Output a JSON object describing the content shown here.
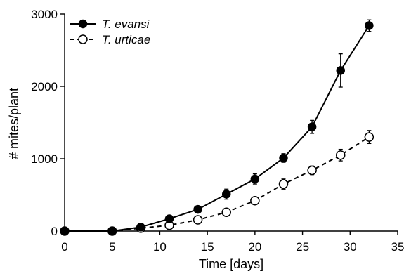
{
  "chart_data": {
    "type": "line",
    "xlabel": "Time [days]",
    "ylabel": "# mites/plant",
    "xlim": [
      0,
      35
    ],
    "ylim": [
      0,
      3000
    ],
    "xticks": [
      0,
      5,
      10,
      15,
      20,
      25,
      30,
      35
    ],
    "yticks": [
      0,
      1000,
      2000,
      3000
    ],
    "grid": false,
    "legend_position": "top-left",
    "series": [
      {
        "name": "T. evansi",
        "marker": "filled-circle",
        "line_style": "solid",
        "x": [
          0,
          5,
          8,
          11,
          14,
          17,
          20,
          23,
          26,
          29,
          32
        ],
        "y": [
          0,
          0,
          55,
          170,
          300,
          510,
          720,
          1010,
          1440,
          2220,
          2840
        ],
        "error": [
          0,
          0,
          20,
          25,
          30,
          70,
          70,
          60,
          90,
          230,
          80
        ]
      },
      {
        "name": "T. urticae",
        "marker": "open-circle",
        "line_style": "dashed",
        "x": [
          0,
          5,
          8,
          11,
          14,
          17,
          20,
          23,
          26,
          29,
          32
        ],
        "y": [
          0,
          0,
          40,
          80,
          155,
          260,
          420,
          650,
          840,
          1050,
          1300
        ],
        "error": [
          0,
          0,
          15,
          20,
          25,
          40,
          40,
          70,
          60,
          80,
          90
        ]
      }
    ]
  }
}
